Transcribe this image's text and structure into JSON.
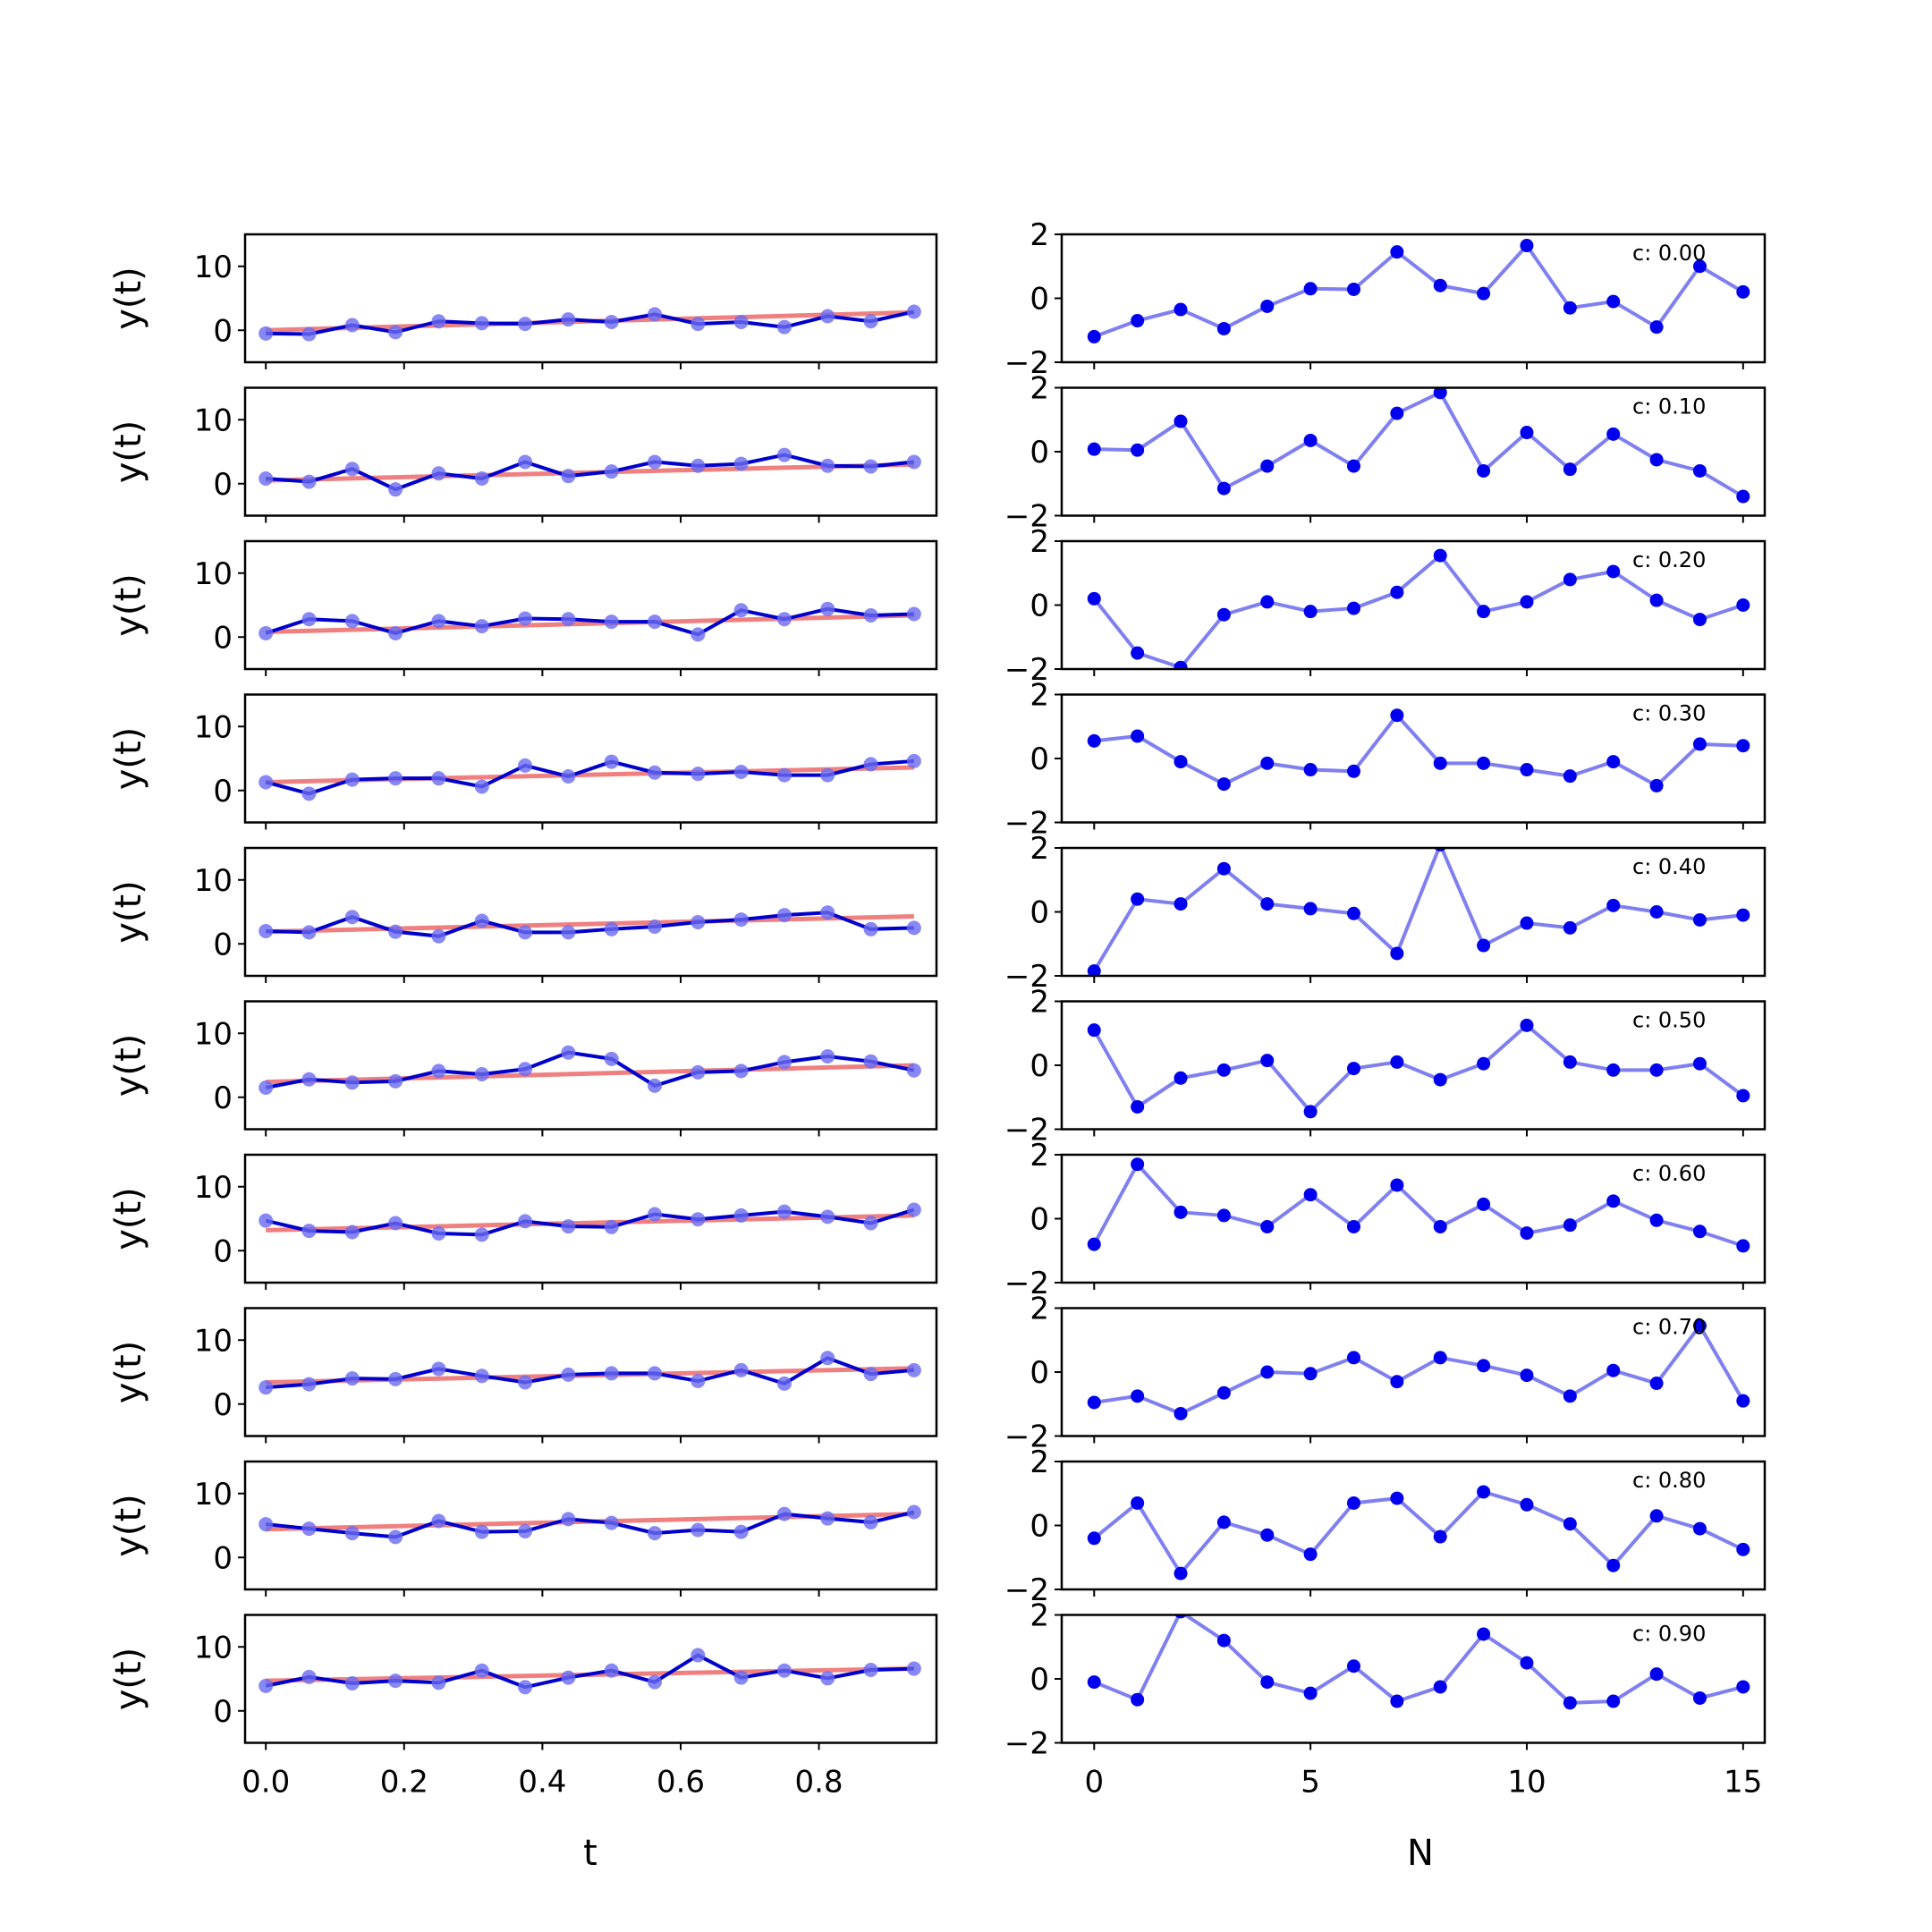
{
  "colors": {
    "fit_line": "#f08080",
    "series_line": "#0000cc",
    "series_marker": "#6a6af0",
    "residual_line": "#7f7ff0",
    "residual_marker": "#0000ee",
    "axes": "#000000"
  },
  "chart_data": [
    {
      "type": "line",
      "panel": "left",
      "xlabel": "t",
      "ylabel": "y(t)",
      "xlim": [
        -0.03,
        0.97
      ],
      "ylim": [
        -5,
        15
      ],
      "xticks": [
        0.0,
        0.2,
        0.4,
        0.6,
        0.8
      ],
      "xtick_labels": [
        "0.0",
        "0.2",
        "0.4",
        "0.6",
        "0.8"
      ],
      "yticks": [
        0,
        10
      ],
      "ytick_labels": [
        "0",
        "10"
      ],
      "x": [
        0,
        0.0625,
        0.125,
        0.1875,
        0.25,
        0.3125,
        0.375,
        0.4375,
        0.5,
        0.5625,
        0.625,
        0.6875,
        0.75,
        0.8125,
        0.875,
        0.9375
      ],
      "rows": [
        {
          "c": 0.0,
          "fit": [
            0,
            2.8
          ],
          "y": [
            -0.5,
            -0.6,
            0.8,
            -0.3,
            1.4,
            1.1,
            1.0,
            1.7,
            1.3,
            2.5,
            1.0,
            1.3,
            0.5,
            2.2,
            1.4,
            2.9
          ]
        },
        {
          "c": 0.1,
          "fit": [
            0.5,
            3.0
          ],
          "y": [
            0.8,
            0.3,
            2.3,
            -0.9,
            1.6,
            0.8,
            3.4,
            1.2,
            1.9,
            3.4,
            2.8,
            3.1,
            4.5,
            2.8,
            2.7,
            3.4
          ]
        },
        {
          "c": 0.2,
          "fit": [
            0.8,
            3.4
          ],
          "y": [
            0.6,
            2.8,
            2.5,
            0.6,
            2.5,
            1.7,
            2.9,
            2.8,
            2.4,
            2.4,
            0.4,
            4.2,
            2.8,
            4.4,
            3.4,
            3.6
          ]
        },
        {
          "c": 0.3,
          "fit": [
            1.3,
            3.6
          ],
          "y": [
            1.3,
            -0.5,
            1.7,
            1.9,
            1.9,
            0.6,
            3.9,
            2.2,
            4.5,
            2.8,
            2.6,
            2.9,
            2.4,
            2.4,
            4.1,
            4.6
          ]
        },
        {
          "c": 0.4,
          "fit": [
            1.9,
            4.3
          ],
          "y": [
            2.0,
            1.8,
            4.2,
            1.9,
            1.2,
            3.6,
            1.8,
            1.8,
            2.3,
            2.7,
            3.4,
            3.8,
            4.5,
            4.9,
            2.3,
            2.5
          ]
        },
        {
          "c": 0.5,
          "fit": [
            2.4,
            5.0
          ],
          "y": [
            1.5,
            2.8,
            2.3,
            2.5,
            4.1,
            3.6,
            4.4,
            7.0,
            6.0,
            1.8,
            3.9,
            4.1,
            5.5,
            6.4,
            5.6,
            4.2
          ]
        },
        {
          "c": 0.6,
          "fit": [
            3.2,
            5.5
          ],
          "y": [
            4.7,
            3.1,
            2.9,
            4.3,
            2.7,
            2.5,
            4.6,
            3.8,
            3.7,
            5.7,
            4.9,
            5.5,
            6.1,
            5.3,
            4.3,
            6.4
          ]
        },
        {
          "c": 0.7,
          "fit": [
            3.4,
            5.6
          ],
          "y": [
            2.6,
            3.1,
            4.0,
            3.9,
            5.5,
            4.4,
            3.4,
            4.6,
            4.8,
            4.8,
            3.6,
            5.3,
            3.2,
            7.2,
            4.7,
            5.3
          ]
        },
        {
          "c": 0.8,
          "fit": [
            4.4,
            6.8
          ],
          "y": [
            5.2,
            4.5,
            3.8,
            3.2,
            5.7,
            4.0,
            4.1,
            6.0,
            5.4,
            3.8,
            4.3,
            4.0,
            6.8,
            6.1,
            5.5,
            7.1
          ]
        },
        {
          "c": 0.9,
          "fit": [
            4.7,
            6.6
          ],
          "y": [
            3.9,
            5.3,
            4.3,
            4.7,
            4.4,
            6.3,
            3.7,
            5.2,
            6.3,
            4.5,
            8.7,
            5.2,
            6.3,
            5.1,
            6.4,
            6.6
          ]
        }
      ]
    },
    {
      "type": "line",
      "panel": "right",
      "xlabel": "N",
      "xlim": [
        -0.75,
        15.5
      ],
      "ylim": [
        -2,
        2
      ],
      "xticks": [
        0,
        5,
        10,
        15
      ],
      "xtick_labels": [
        "0",
        "5",
        "10",
        "15"
      ],
      "yticks": [
        -2,
        0,
        2
      ],
      "ytick_labels": [
        "−2",
        "0",
        "2"
      ],
      "annotation_prefix": "c:",
      "x": [
        0,
        1,
        2,
        3,
        4,
        5,
        6,
        7,
        8,
        9,
        10,
        11,
        12,
        13,
        14,
        15
      ],
      "rows": [
        {
          "label": "c: 0.00",
          "values": [
            -1.2,
            -0.7,
            -0.35,
            -0.95,
            -0.25,
            0.3,
            0.28,
            1.45,
            0.4,
            0.15,
            1.65,
            -0.3,
            -0.1,
            -0.9,
            1.0,
            0.2
          ]
        },
        {
          "label": "c: 0.10",
          "values": [
            0.08,
            0.05,
            0.95,
            -1.15,
            -0.45,
            0.35,
            -0.45,
            1.2,
            1.85,
            -0.6,
            0.6,
            -0.55,
            0.55,
            -0.25,
            -0.6,
            -1.4
          ]
        },
        {
          "label": "c: 0.20",
          "values": [
            0.2,
            -1.5,
            -1.95,
            -0.3,
            0.1,
            -0.2,
            -0.1,
            0.4,
            1.55,
            -0.2,
            0.1,
            0.8,
            1.05,
            0.15,
            -0.45,
            0.0
          ]
        },
        {
          "label": "c: 0.30",
          "values": [
            0.55,
            0.7,
            -0.1,
            -0.8,
            -0.15,
            -0.35,
            -0.4,
            1.35,
            -0.15,
            -0.15,
            -0.35,
            -0.55,
            -0.1,
            -0.85,
            0.45,
            0.4
          ]
        },
        {
          "label": "c: 0.40",
          "values": [
            -1.85,
            0.4,
            0.25,
            1.35,
            0.25,
            0.1,
            -0.05,
            -1.3,
            2.1,
            -1.05,
            -0.35,
            -0.5,
            0.2,
            0.0,
            -0.25,
            -0.1
          ]
        },
        {
          "label": "c: 0.50",
          "values": [
            1.1,
            -1.3,
            -0.4,
            -0.15,
            0.15,
            -1.45,
            -0.1,
            0.1,
            -0.45,
            0.05,
            1.25,
            0.1,
            -0.15,
            -0.15,
            0.05,
            -0.95
          ]
        },
        {
          "label": "c: 0.60",
          "values": [
            -0.8,
            1.7,
            0.2,
            0.1,
            -0.25,
            0.75,
            -0.25,
            1.05,
            -0.25,
            0.45,
            -0.45,
            -0.2,
            0.55,
            -0.05,
            -0.4,
            -0.85
          ]
        },
        {
          "label": "c: 0.70",
          "values": [
            -0.95,
            -0.75,
            -1.3,
            -0.65,
            0.0,
            -0.05,
            0.45,
            -0.3,
            0.45,
            0.2,
            -0.1,
            -0.75,
            0.05,
            -0.35,
            1.45,
            -0.9
          ]
        },
        {
          "label": "c: 0.80",
          "values": [
            -0.4,
            0.7,
            -1.5,
            0.1,
            -0.3,
            -0.9,
            0.7,
            0.85,
            -0.35,
            1.05,
            0.65,
            0.05,
            -1.25,
            0.3,
            -0.1,
            -0.75
          ]
        },
        {
          "label": "c: 0.90",
          "values": [
            -0.1,
            -0.65,
            2.1,
            1.2,
            -0.1,
            -0.45,
            0.4,
            -0.7,
            -0.25,
            1.4,
            0.5,
            -0.75,
            -0.7,
            0.15,
            -0.6,
            -0.25
          ]
        }
      ]
    }
  ]
}
